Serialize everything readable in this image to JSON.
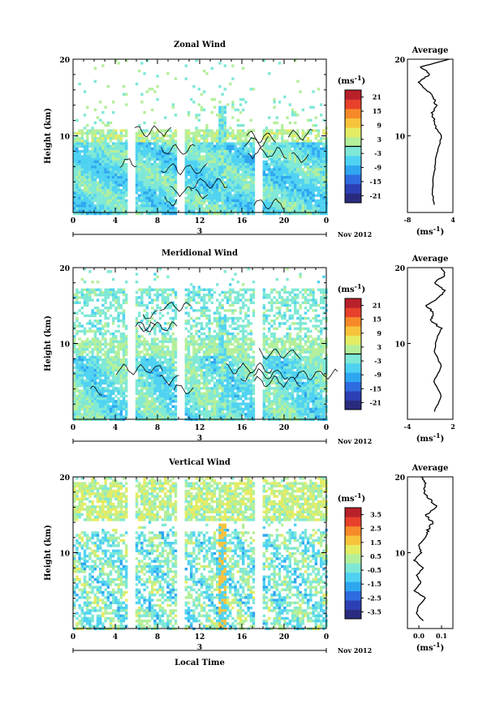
{
  "chart_data": [
    {
      "type": "heatmap",
      "title": "Zonal Wind",
      "ylabel": "Height (km)",
      "ylim": [
        0,
        20
      ],
      "xlim": [
        0,
        24
      ],
      "x_ticks": [
        "0",
        "4",
        "8",
        "12",
        "16",
        "20",
        "0"
      ],
      "y_ticks": [
        "10",
        "20"
      ],
      "date_label": "Nov 2012",
      "day_label": "3",
      "colorbar": {
        "unit": "(ms-1)",
        "ticks": [
          "21",
          "15",
          "9",
          "3",
          "-3",
          "-9",
          "-15",
          "-21"
        ],
        "range": [
          -24,
          24
        ]
      },
      "data_gaps_local_time": [
        5.5,
        10.0,
        17.5
      ],
      "dominant_value_note": "mostly -3 to -9",
      "profile": {
        "title": "Average",
        "xlabel": "(ms-1)",
        "x_ticks": [
          "-8",
          "4"
        ],
        "xlim": [
          -8,
          4
        ],
        "y_ticks": [
          "10",
          "20"
        ],
        "values_by_height_km": [
          [
            1,
            -1.0
          ],
          [
            3,
            -1.5
          ],
          [
            5,
            -1.0
          ],
          [
            7,
            -0.5
          ],
          [
            9,
            0.5
          ],
          [
            10,
            1.0
          ],
          [
            11,
            -0.5
          ],
          [
            12,
            -1.0
          ],
          [
            13,
            -1.5
          ],
          [
            14,
            -0.5
          ],
          [
            15,
            -1.0
          ],
          [
            16,
            -3.0
          ],
          [
            17,
            -5.0
          ],
          [
            18,
            -2.0
          ],
          [
            19,
            -4.5
          ],
          [
            20,
            3.0
          ]
        ]
      }
    },
    {
      "type": "heatmap",
      "title": "Meridional Wind",
      "ylabel": "Height (km)",
      "ylim": [
        0,
        20
      ],
      "xlim": [
        0,
        24
      ],
      "x_ticks": [
        "0",
        "4",
        "8",
        "12",
        "16",
        "20",
        "0"
      ],
      "y_ticks": [
        "10",
        "20"
      ],
      "date_label": "Nov 2012",
      "day_label": "3",
      "colorbar": {
        "unit": "(ms-1)",
        "ticks": [
          "21",
          "15",
          "9",
          "3",
          "-3",
          "-9",
          "-15",
          "-21"
        ],
        "range": [
          -24,
          24
        ]
      },
      "data_gaps_local_time": [
        5.5,
        10.0,
        17.5
      ],
      "profile": {
        "title": "Average",
        "xlabel": "(ms-1)",
        "x_ticks": [
          "-4",
          "2"
        ],
        "xlim": [
          -4,
          2
        ],
        "y_ticks": [
          "10",
          "20"
        ],
        "values_by_height_km": [
          [
            1,
            -0.5
          ],
          [
            3,
            0.5
          ],
          [
            5,
            -0.5
          ],
          [
            7,
            0.5
          ],
          [
            9,
            -0.5
          ],
          [
            11,
            0.0
          ],
          [
            12,
            0.5
          ],
          [
            13,
            -1.0
          ],
          [
            14,
            -0.5
          ],
          [
            15,
            -1.5
          ],
          [
            16,
            0.0
          ],
          [
            17,
            1.0
          ],
          [
            18,
            -0.5
          ],
          [
            19,
            1.0
          ],
          [
            20,
            0.5
          ]
        ]
      }
    },
    {
      "type": "heatmap",
      "title": "Vertical Wind",
      "ylabel": "Height (km)",
      "xlabel": "Local Time",
      "ylim": [
        0,
        20
      ],
      "xlim": [
        0,
        24
      ],
      "x_ticks": [
        "0",
        "4",
        "8",
        "12",
        "16",
        "20",
        "0"
      ],
      "y_ticks": [
        "10",
        "20"
      ],
      "date_label": "Nov 2012",
      "day_label": "3",
      "colorbar": {
        "unit": "(ms-1)",
        "ticks": [
          "3.5",
          "2.5",
          "1.5",
          "0.5",
          "-0.5",
          "-1.5",
          "-2.5",
          "-3.5"
        ],
        "range": [
          -4,
          4
        ]
      },
      "data_gaps_local_time": [
        5.5,
        10.0,
        17.5
      ],
      "profile": {
        "title": "Average",
        "xlabel": "(ms-1)",
        "x_ticks": [
          "0.0",
          "0.1"
        ],
        "xlim": [
          -0.05,
          0.15
        ],
        "y_ticks": [
          "10",
          "20"
        ],
        "values_by_height_km": [
          [
            1,
            0.02
          ],
          [
            2,
            -0.01
          ],
          [
            3,
            0.0
          ],
          [
            4,
            0.03
          ],
          [
            5,
            -0.02
          ],
          [
            6,
            0.01
          ],
          [
            7,
            -0.01
          ],
          [
            8,
            0.02
          ],
          [
            9,
            -0.02
          ],
          [
            10,
            0.01
          ],
          [
            11,
            0.0
          ],
          [
            12,
            0.03
          ],
          [
            13,
            0.04
          ],
          [
            14,
            0.06
          ],
          [
            15,
            0.03
          ],
          [
            16,
            0.08
          ],
          [
            17,
            0.05
          ],
          [
            18,
            0.02
          ],
          [
            19,
            0.03
          ],
          [
            20,
            0.01
          ]
        ]
      }
    }
  ],
  "colormap": [
    "#2a2a7e",
    "#2d3fb4",
    "#2f6ce0",
    "#2fa7f0",
    "#4fd2f2",
    "#7fe8d6",
    "#b4ef9a",
    "#e4ec63",
    "#f8c33c",
    "#f68a2a",
    "#e8412b",
    "#b8202a"
  ]
}
